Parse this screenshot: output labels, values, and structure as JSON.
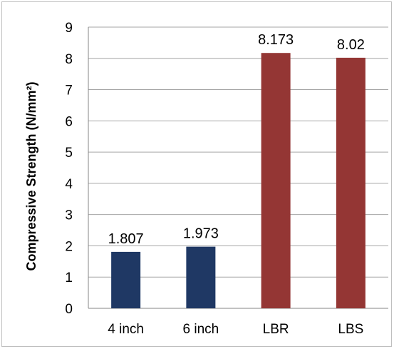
{
  "chart_data": {
    "type": "bar",
    "categories": [
      "4 inch",
      "6 inch",
      "LBR",
      "LBS"
    ],
    "values": [
      1.807,
      1.973,
      8.173,
      8.02
    ],
    "data_labels": [
      "1.807",
      "1.973",
      "8.173",
      "8.02"
    ],
    "bar_colors": [
      "#1f3864",
      "#1f3864",
      "#943634",
      "#943634"
    ],
    "title": "",
    "xlabel": "",
    "ylabel": "Compressive Strength  (N/mm²)",
    "ylim": [
      0,
      9
    ],
    "yticks": [
      "0",
      "1",
      "2",
      "3",
      "4",
      "5",
      "6",
      "7",
      "8",
      "9"
    ],
    "grid": true,
    "legend": "none"
  }
}
